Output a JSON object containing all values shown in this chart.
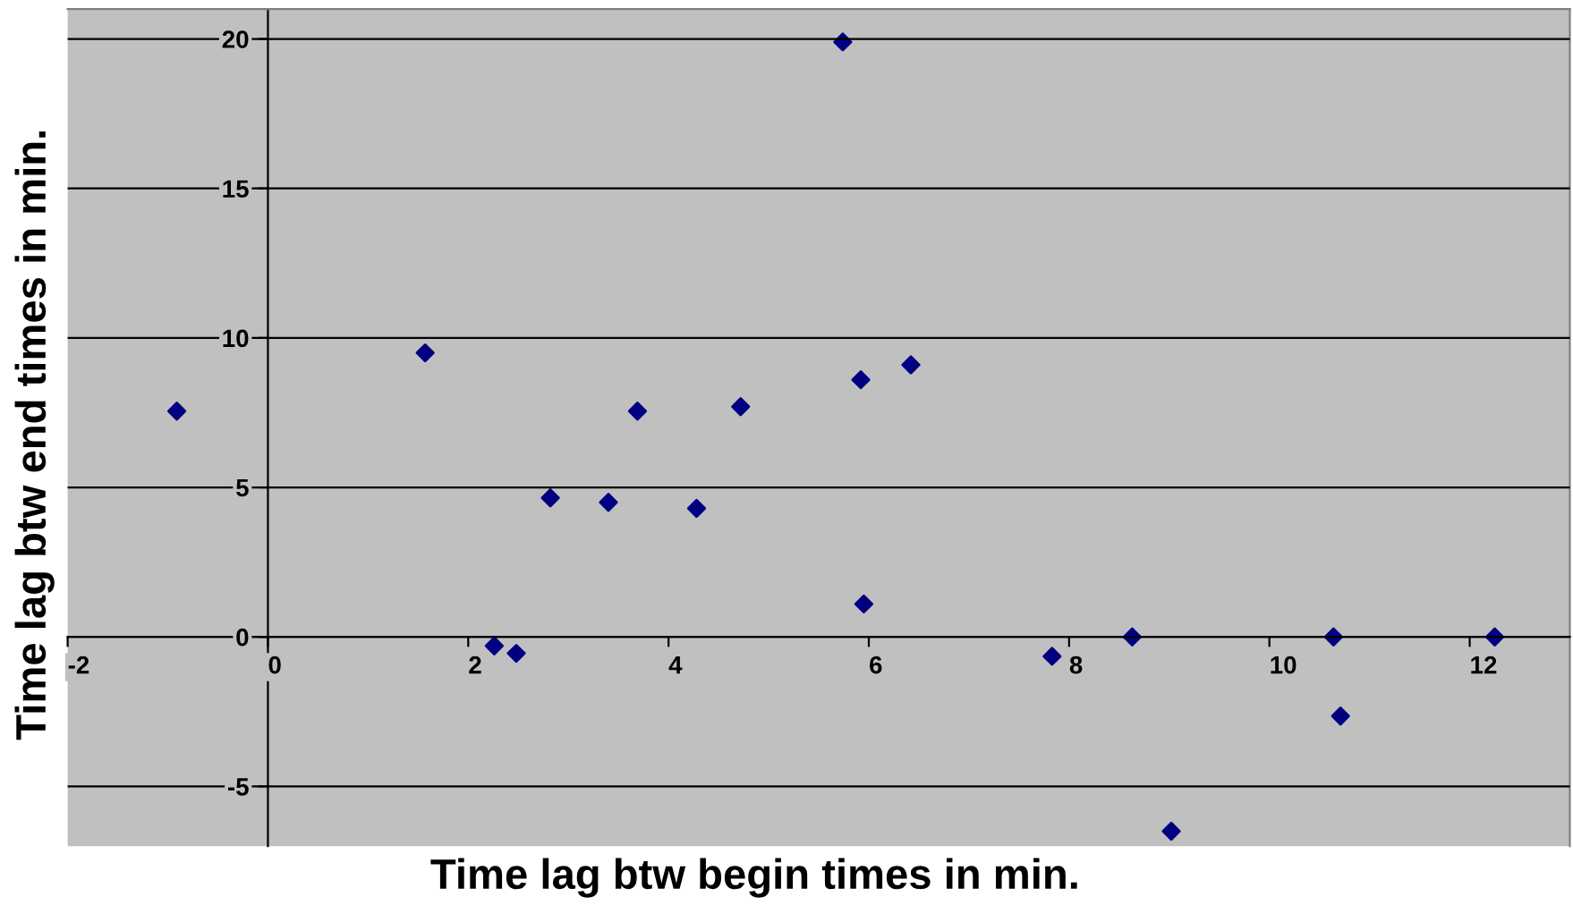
{
  "chart_data": {
    "type": "scatter",
    "xlabel": "Time lag btw begin times in min.",
    "ylabel": "Time lag btw end times in min.",
    "x": [
      -0.91,
      1.57,
      2.26,
      2.48,
      2.82,
      3.4,
      3.69,
      4.28,
      4.72,
      5.74,
      5.92,
      5.95,
      6.42,
      7.83,
      8.63,
      9.02,
      10.64,
      10.71,
      12.25
    ],
    "series": [
      {
        "color": "#000080",
        "values": [
          7.55,
          9.5,
          -0.3,
          -0.55,
          4.65,
          4.5,
          7.55,
          4.3,
          7.7,
          19.9,
          8.6,
          1.1,
          9.1,
          -0.65,
          0,
          -6.5,
          0,
          -2.65,
          0
        ]
      }
    ],
    "xlim": [
      -2,
      13
    ],
    "ylim": [
      -7,
      21
    ],
    "xticks": [
      -2,
      0,
      2,
      4,
      6,
      8,
      10,
      12
    ],
    "yticks": [
      -5,
      0,
      5,
      10,
      15,
      20
    ],
    "grid": "y",
    "marker": "diamond"
  }
}
